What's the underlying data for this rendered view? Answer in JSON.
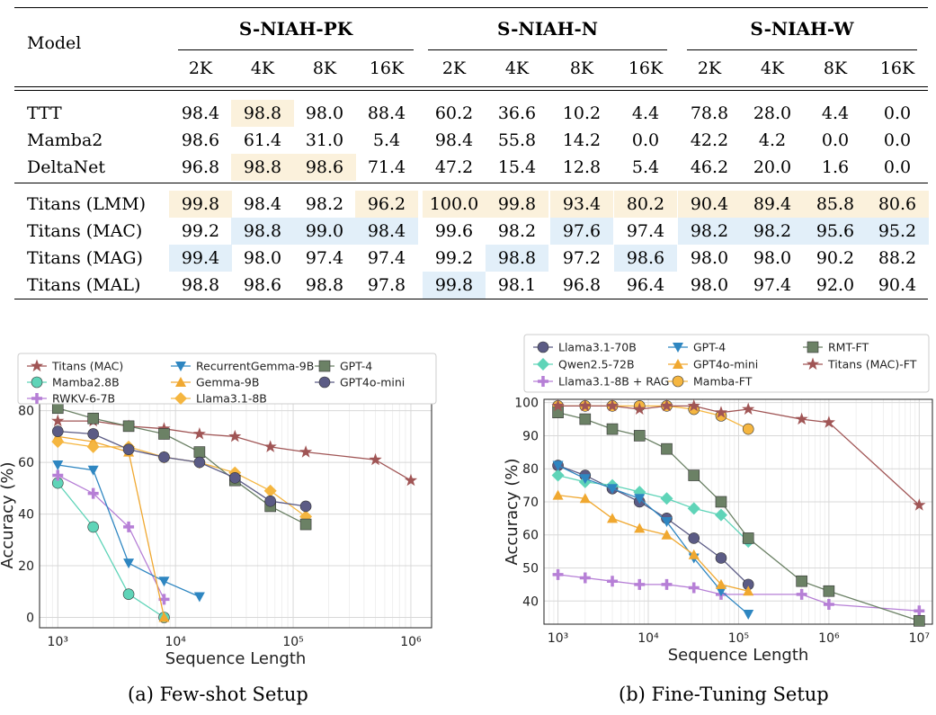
{
  "table": {
    "model_header": "Model",
    "groups": [
      "S-NIAH-PK",
      "S-NIAH-N",
      "S-NIAH-W"
    ],
    "lengths": [
      "2K",
      "4K",
      "8K",
      "16K"
    ],
    "colors": {
      "orange": "#fbf1dc",
      "blue": "#e2eff9"
    },
    "rows": [
      {
        "name": "TTT",
        "values": [
          "98.4",
          "98.8",
          "98.0",
          "88.4",
          "60.2",
          "36.6",
          "10.2",
          "4.4",
          "78.8",
          "28.0",
          "4.4",
          "0.0"
        ],
        "hl": [
          "",
          "o",
          "",
          "",
          "",
          "",
          "",
          "",
          "",
          "",
          "",
          ""
        ]
      },
      {
        "name": "Mamba2",
        "values": [
          "98.6",
          "61.4",
          "31.0",
          "5.4",
          "98.4",
          "55.8",
          "14.2",
          "0.0",
          "42.2",
          "4.2",
          "0.0",
          "0.0"
        ],
        "hl": [
          "",
          "",
          "",
          "",
          "",
          "",
          "",
          "",
          "",
          "",
          "",
          ""
        ]
      },
      {
        "name": "DeltaNet",
        "values": [
          "96.8",
          "98.8",
          "98.6",
          "71.4",
          "47.2",
          "15.4",
          "12.8",
          "5.4",
          "46.2",
          "20.0",
          "1.6",
          "0.0"
        ],
        "hl": [
          "",
          "o",
          "o",
          "",
          "",
          "",
          "",
          "",
          "",
          "",
          "",
          ""
        ]
      },
      {
        "name": "Titans (LMM)",
        "values": [
          "99.8",
          "98.4",
          "98.2",
          "96.2",
          "100.0",
          "99.8",
          "93.4",
          "80.2",
          "90.4",
          "89.4",
          "85.8",
          "80.6"
        ],
        "hl": [
          "o",
          "",
          "",
          "o",
          "o",
          "o",
          "o",
          "o",
          "o",
          "o",
          "o",
          "o"
        ]
      },
      {
        "name": "Titans (MAC)",
        "values": [
          "99.2",
          "98.8",
          "99.0",
          "98.4",
          "99.6",
          "98.2",
          "97.6",
          "97.4",
          "98.2",
          "98.2",
          "95.6",
          "95.2"
        ],
        "hl": [
          "",
          "b",
          "b",
          "b",
          "",
          "",
          "b",
          "",
          "b",
          "b",
          "b",
          "b"
        ]
      },
      {
        "name": "Titans (MAG)",
        "values": [
          "99.4",
          "98.0",
          "97.4",
          "97.4",
          "99.2",
          "98.8",
          "97.2",
          "98.6",
          "98.0",
          "98.0",
          "90.2",
          "88.2"
        ],
        "hl": [
          "b",
          "",
          "",
          "",
          "",
          "b",
          "",
          "b",
          "",
          "",
          "",
          ""
        ]
      },
      {
        "name": "Titans (MAL)",
        "values": [
          "98.8",
          "98.6",
          "98.8",
          "97.8",
          "99.8",
          "98.1",
          "96.8",
          "96.4",
          "98.0",
          "97.4",
          "92.0",
          "90.4"
        ],
        "hl": [
          "",
          "",
          "",
          "",
          "b",
          "",
          "",
          "",
          "",
          "",
          "",
          ""
        ]
      }
    ]
  },
  "chart_data": [
    {
      "type": "line",
      "xlabel": "Sequence Length",
      "ylabel": "Accuracy (%)",
      "xscale": "log",
      "xlim": [
        700,
        1500000
      ],
      "ylim": [
        -4,
        83
      ],
      "yticks": [
        "0",
        "20",
        "40",
        "60",
        "80"
      ],
      "xticks": [
        "10³",
        "10⁴",
        "10⁵",
        "10⁶"
      ],
      "grid": true,
      "legend": "top",
      "series": [
        {
          "name": "Titans (MAC)",
          "color": "#a05555",
          "marker": "star",
          "x": [
            1000,
            2000,
            4000,
            8000,
            16000,
            32000,
            64000,
            128000,
            500000,
            1000000
          ],
          "y": [
            76,
            76,
            74,
            73,
            71,
            70,
            66,
            64,
            61,
            53
          ]
        },
        {
          "name": "Mamba2.8B",
          "color": "#5fd4b8",
          "marker": "circle",
          "x": [
            1000,
            2000,
            4000,
            8000
          ],
          "y": [
            52,
            35,
            9,
            0
          ]
        },
        {
          "name": "RWKV-6-7B",
          "color": "#b67fd6",
          "marker": "plus",
          "x": [
            1000,
            2000,
            4000,
            8000
          ],
          "y": [
            55,
            48,
            35,
            7
          ]
        },
        {
          "name": "RecurrentGemma-9B",
          "color": "#2e86c1",
          "marker": "tri-down",
          "x": [
            1000,
            2000,
            4000,
            8000,
            16000
          ],
          "y": [
            59,
            57,
            21,
            14,
            8
          ]
        },
        {
          "name": "Gemma-9B",
          "color": "#f0a830",
          "marker": "tri-up",
          "x": [
            1000,
            2000,
            4000,
            8000
          ],
          "y": [
            70,
            68,
            64,
            0
          ]
        },
        {
          "name": "Llama3.1-8B",
          "color": "#f5b640",
          "marker": "diamond",
          "x": [
            1000,
            2000,
            4000,
            8000,
            16000,
            32000,
            64000,
            128000
          ],
          "y": [
            68,
            66,
            66,
            62,
            60,
            56,
            49,
            39
          ]
        },
        {
          "name": "GPT-4",
          "color": "#6b8165",
          "marker": "square",
          "x": [
            1000,
            2000,
            4000,
            8000,
            16000,
            32000,
            64000,
            128000
          ],
          "y": [
            81,
            77,
            74,
            71,
            64,
            53,
            43,
            36
          ]
        },
        {
          "name": "GPT4o-mini",
          "color": "#5b5b85",
          "marker": "circle",
          "x": [
            1000,
            2000,
            4000,
            8000,
            16000,
            32000,
            64000,
            128000
          ],
          "y": [
            72,
            71,
            65,
            62,
            60,
            54,
            45,
            43
          ]
        }
      ]
    },
    {
      "type": "line",
      "xlabel": "Sequence Length",
      "ylabel": "Accuracy (%)",
      "xscale": "log",
      "xlim": [
        700,
        14000000
      ],
      "ylim": [
        33,
        101
      ],
      "yticks": [
        "40",
        "50",
        "60",
        "70",
        "80",
        "90",
        "100"
      ],
      "xticks": [
        "10³",
        "10⁴",
        "10⁵",
        "10⁶",
        "10⁷"
      ],
      "grid": true,
      "legend": "top",
      "series": [
        {
          "name": "Llama3.1-70B",
          "color": "#5b5b85",
          "marker": "circle",
          "x": [
            1000,
            2000,
            4000,
            8000,
            16000,
            32000,
            64000,
            128000
          ],
          "y": [
            81,
            78,
            74,
            70,
            65,
            59,
            53,
            45
          ]
        },
        {
          "name": "Qwen2.5-72B",
          "color": "#5fd4b8",
          "marker": "diamond",
          "x": [
            1000,
            2000,
            4000,
            8000,
            16000,
            32000,
            64000,
            128000
          ],
          "y": [
            78,
            76,
            75,
            73,
            71,
            68,
            66,
            58
          ]
        },
        {
          "name": "Llama3.1-8B + RAG",
          "color": "#b67fd6",
          "marker": "plus",
          "x": [
            1000,
            2000,
            4000,
            8000,
            16000,
            32000,
            64000,
            500000,
            1000000,
            10000000
          ],
          "y": [
            48,
            47,
            46,
            45,
            45,
            44,
            42,
            42,
            39,
            37
          ]
        },
        {
          "name": "GPT-4",
          "color": "#2e86c1",
          "marker": "tri-down",
          "x": [
            1000,
            2000,
            4000,
            8000,
            16000,
            32000,
            64000,
            128000
          ],
          "y": [
            81,
            77,
            74,
            71,
            64,
            53,
            43,
            36
          ]
        },
        {
          "name": "GPT4o-mini",
          "color": "#f0a830",
          "marker": "tri-up",
          "x": [
            1000,
            2000,
            4000,
            8000,
            16000,
            32000,
            64000,
            128000
          ],
          "y": [
            72,
            71,
            65,
            62,
            60,
            54,
            45,
            43
          ]
        },
        {
          "name": "Mamba-FT",
          "color": "#f5b640",
          "marker": "circle",
          "x": [
            1000,
            2000,
            4000,
            8000,
            16000,
            32000,
            64000,
            128000
          ],
          "y": [
            99,
            99,
            99,
            99,
            99,
            98,
            96,
            92
          ]
        },
        {
          "name": "RMT-FT",
          "color": "#6b8165",
          "marker": "square",
          "x": [
            1000,
            2000,
            4000,
            8000,
            16000,
            32000,
            64000,
            128000,
            500000,
            1000000,
            10000000
          ],
          "y": [
            97,
            95,
            92,
            90,
            86,
            78,
            70,
            59,
            46,
            43,
            34
          ]
        },
        {
          "name": "Titans (MAC)-FT",
          "color": "#a05555",
          "marker": "star",
          "x": [
            1000,
            2000,
            4000,
            8000,
            16000,
            32000,
            64000,
            128000,
            500000,
            1000000,
            10000000
          ],
          "y": [
            99,
            99,
            99,
            98,
            99,
            99,
            97,
            98,
            95,
            94,
            69
          ]
        }
      ]
    }
  ],
  "captions": [
    "(a) Few-shot Setup",
    "(b) Fine-Tuning Setup"
  ]
}
